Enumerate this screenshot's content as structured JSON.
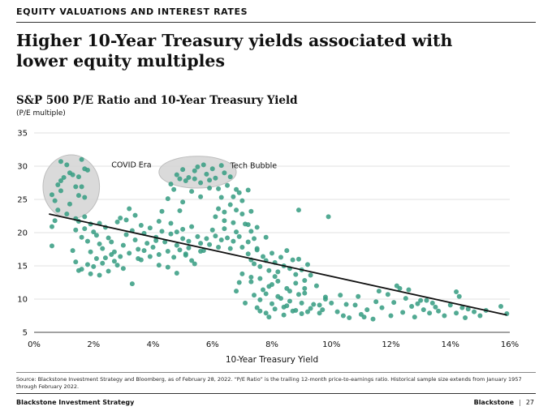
{
  "section_label": "EQUITY VALUATIONS AND INTEREST RATES",
  "headline": "Higher 10-Year Treasury yields associated with lower equity multiples",
  "chart_data": {
    "type": "scatter",
    "title": "S&P 500 P/E Ratio and 10-Year Treasury Yield",
    "ylabel": "(P/E multiple)",
    "xlabel": "10-Year Treasury Yield",
    "xlim": [
      0,
      16
    ],
    "ylim": [
      5,
      35
    ],
    "x_ticks": [
      0,
      2,
      4,
      6,
      8,
      10,
      12,
      14,
      16
    ],
    "x_tick_labels": [
      "0%",
      "2%",
      "4%",
      "6%",
      "8%",
      "10%",
      "12%",
      "14%",
      "16%"
    ],
    "y_ticks": [
      5,
      10,
      15,
      20,
      25,
      30,
      35
    ],
    "y_tick_labels": [
      "5",
      "10",
      "15",
      "20",
      "25",
      "30",
      "35"
    ],
    "grid": "horizontal",
    "colors": {
      "points": "#3a9e84",
      "trend": "#111111",
      "ellipse": "#d3d3d3"
    },
    "trendline": {
      "x": [
        0.5,
        15.9
      ],
      "y": [
        22.8,
        7.6
      ]
    },
    "annotations": [
      {
        "text": "COVID Era",
        "x": 2.6,
        "y": 29.2,
        "ellipse": {
          "cx": 1.25,
          "cy": 26.9,
          "rx": 0.95,
          "ry": 4.8
        }
      },
      {
        "text": "Tech Bubble",
        "x": 6.6,
        "y": 29.1,
        "ellipse": {
          "cx": 5.5,
          "cy": 29.1,
          "rx": 1.3,
          "ry": 2.4
        }
      }
    ],
    "points": [
      [
        0.6,
        25.7
      ],
      [
        0.7,
        24.8
      ],
      [
        0.8,
        27.2
      ],
      [
        0.9,
        30.7
      ],
      [
        1.0,
        28.3
      ],
      [
        1.1,
        30.2
      ],
      [
        0.9,
        26.3
      ],
      [
        1.3,
        28.7
      ],
      [
        1.4,
        26.9
      ],
      [
        1.5,
        25.6
      ],
      [
        1.6,
        31.0
      ],
      [
        1.7,
        29.6
      ],
      [
        1.6,
        26.9
      ],
      [
        1.2,
        29.0
      ],
      [
        1.5,
        28.4
      ],
      [
        0.8,
        23.4
      ],
      [
        1.7,
        25.3
      ],
      [
        1.4,
        22.1
      ],
      [
        0.7,
        21.8
      ],
      [
        0.6,
        20.9
      ],
      [
        1.2,
        24.3
      ],
      [
        1.8,
        29.4
      ],
      [
        0.9,
        27.8
      ],
      [
        1.1,
        22.8
      ],
      [
        0.6,
        18.0
      ],
      [
        1.3,
        17.3
      ],
      [
        1.4,
        15.6
      ],
      [
        1.5,
        14.3
      ],
      [
        4.5,
        25.1
      ],
      [
        4.6,
        27.3
      ],
      [
        4.8,
        28.7
      ],
      [
        4.9,
        28.1
      ],
      [
        5.0,
        29.5
      ],
      [
        5.2,
        28.3
      ],
      [
        5.4,
        29.3
      ],
      [
        5.5,
        29.9
      ],
      [
        5.6,
        27.5
      ],
      [
        5.7,
        30.2
      ],
      [
        5.8,
        28.8
      ],
      [
        5.9,
        27.9
      ],
      [
        6.0,
        29.6
      ],
      [
        6.1,
        28.2
      ],
      [
        6.3,
        30.1
      ],
      [
        6.4,
        29.0
      ],
      [
        6.5,
        27.1
      ],
      [
        5.3,
        26.2
      ],
      [
        5.1,
        27.8
      ],
      [
        4.7,
        26.5
      ],
      [
        5.9,
        26.7
      ],
      [
        6.6,
        28.4
      ],
      [
        6.2,
        26.6
      ],
      [
        5.4,
        28.1
      ],
      [
        6.8,
        26.5
      ],
      [
        6.9,
        26.0
      ],
      [
        7.2,
        26.4
      ],
      [
        7.3,
        23.2
      ],
      [
        6.4,
        23.1
      ],
      [
        6.7,
        25.4
      ],
      [
        7.0,
        24.8
      ],
      [
        6.3,
        25.3
      ],
      [
        5.0,
        24.6
      ],
      [
        5.6,
        25.4
      ],
      [
        6.6,
        24.2
      ],
      [
        4.9,
        23.3
      ],
      [
        1.4,
        20.4
      ],
      [
        1.5,
        21.7
      ],
      [
        1.6,
        19.3
      ],
      [
        1.7,
        20.6
      ],
      [
        1.8,
        18.7
      ],
      [
        1.9,
        21.3
      ],
      [
        2.0,
        20.1
      ],
      [
        2.1,
        19.6
      ],
      [
        2.2,
        18.3
      ],
      [
        2.3,
        17.6
      ],
      [
        2.4,
        20.8
      ],
      [
        2.5,
        19.2
      ],
      [
        2.6,
        18.6
      ],
      [
        2.7,
        17.1
      ],
      [
        2.8,
        21.6
      ],
      [
        2.9,
        16.4
      ],
      [
        3.0,
        18.1
      ],
      [
        3.1,
        19.7
      ],
      [
        3.2,
        16.9
      ],
      [
        3.3,
        20.3
      ],
      [
        3.4,
        18.9
      ],
      [
        3.5,
        17.5
      ],
      [
        3.6,
        21.1
      ],
      [
        3.7,
        19.9
      ],
      [
        3.8,
        18.4
      ],
      [
        3.9,
        20.7
      ],
      [
        4.0,
        17.8
      ],
      [
        4.1,
        19.3
      ],
      [
        4.2,
        16.7
      ],
      [
        4.3,
        20.2
      ],
      [
        4.4,
        18.6
      ],
      [
        4.5,
        17.2
      ],
      [
        4.6,
        19.8
      ],
      [
        4.7,
        16.3
      ],
      [
        4.8,
        18.1
      ],
      [
        4.9,
        17.4
      ],
      [
        5.0,
        19.1
      ],
      [
        5.1,
        16.6
      ],
      [
        5.2,
        18.7
      ],
      [
        5.3,
        15.8
      ],
      [
        1.6,
        14.5
      ],
      [
        1.8,
        15.2
      ],
      [
        1.9,
        13.8
      ],
      [
        2.0,
        14.9
      ],
      [
        2.1,
        16.1
      ],
      [
        2.2,
        13.6
      ],
      [
        2.3,
        15.4
      ],
      [
        2.5,
        14.2
      ],
      [
        2.6,
        16.7
      ],
      [
        2.8,
        15.1
      ],
      [
        3.0,
        14.6
      ],
      [
        3.3,
        12.3
      ],
      [
        3.6,
        15.9
      ],
      [
        3.9,
        16.4
      ],
      [
        4.2,
        15.1
      ],
      [
        4.5,
        14.8
      ],
      [
        4.8,
        13.9
      ],
      [
        5.1,
        16.8
      ],
      [
        5.4,
        15.3
      ],
      [
        5.6,
        17.2
      ],
      [
        3.1,
        21.9
      ],
      [
        2.2,
        21.4
      ],
      [
        1.7,
        22.4
      ],
      [
        2.9,
        22.2
      ],
      [
        3.4,
        22.6
      ],
      [
        4.2,
        21.7
      ],
      [
        4.6,
        21.4
      ],
      [
        5.0,
        20.5
      ],
      [
        5.3,
        20.9
      ],
      [
        4.3,
        23.2
      ],
      [
        3.2,
        23.6
      ],
      [
        1.9,
        17.1
      ],
      [
        2.4,
        16.2
      ],
      [
        2.7,
        15.7
      ],
      [
        3.5,
        16.1
      ],
      [
        4.1,
        18.8
      ],
      [
        3.7,
        17.3
      ],
      [
        4.8,
        20.1
      ],
      [
        5.2,
        17.7
      ],
      [
        5.5,
        19.4
      ],
      [
        5.6,
        18.4
      ],
      [
        5.7,
        17.3
      ],
      [
        5.8,
        19.1
      ],
      [
        5.9,
        18.2
      ],
      [
        6.0,
        20.4
      ],
      [
        6.1,
        19.5
      ],
      [
        6.2,
        17.8
      ],
      [
        6.3,
        18.9
      ],
      [
        6.4,
        20.6
      ],
      [
        6.5,
        19.2
      ],
      [
        6.6,
        17.6
      ],
      [
        6.7,
        18.7
      ],
      [
        6.8,
        20.1
      ],
      [
        6.9,
        19.4
      ],
      [
        7.0,
        17.8
      ],
      [
        7.1,
        21.3
      ],
      [
        7.2,
        18.6
      ],
      [
        7.3,
        20.2
      ],
      [
        7.4,
        19.1
      ],
      [
        7.5,
        17.4
      ],
      [
        6.1,
        22.4
      ],
      [
        6.4,
        21.8
      ],
      [
        6.7,
        21.5
      ],
      [
        7.0,
        22.8
      ],
      [
        7.2,
        21.2
      ],
      [
        6.8,
        23.4
      ],
      [
        7.5,
        20.8
      ],
      [
        7.8,
        19.3
      ],
      [
        6.2,
        23.6
      ],
      [
        7.3,
        15.9
      ],
      [
        7.2,
        16.8
      ],
      [
        7.4,
        15.3
      ],
      [
        7.5,
        17.6
      ],
      [
        7.6,
        14.9
      ],
      [
        7.7,
        16.4
      ],
      [
        7.8,
        15.8
      ],
      [
        7.9,
        14.3
      ],
      [
        8.0,
        16.9
      ],
      [
        8.1,
        15.5
      ],
      [
        8.2,
        14.1
      ],
      [
        8.3,
        16.3
      ],
      [
        8.4,
        15.0
      ],
      [
        8.5,
        17.3
      ],
      [
        8.6,
        14.6
      ],
      [
        8.7,
        15.9
      ],
      [
        8.8,
        13.7
      ],
      [
        8.9,
        16.0
      ],
      [
        9.0,
        14.4
      ],
      [
        9.1,
        12.8
      ],
      [
        9.2,
        15.2
      ],
      [
        7.0,
        13.8
      ],
      [
        7.3,
        12.6
      ],
      [
        7.6,
        13.1
      ],
      [
        7.9,
        11.9
      ],
      [
        8.2,
        12.7
      ],
      [
        8.5,
        11.6
      ],
      [
        8.8,
        12.4
      ],
      [
        9.1,
        10.9
      ],
      [
        9.3,
        13.6
      ],
      [
        9.5,
        12.0
      ],
      [
        7.4,
        10.6
      ],
      [
        7.6,
        9.9
      ],
      [
        7.8,
        10.8
      ],
      [
        8.0,
        9.3
      ],
      [
        8.2,
        10.4
      ],
      [
        8.4,
        8.8
      ],
      [
        8.6,
        9.7
      ],
      [
        8.8,
        8.3
      ],
      [
        9.0,
        9.4
      ],
      [
        9.2,
        8.1
      ],
      [
        7.5,
        8.7
      ],
      [
        7.8,
        7.9
      ],
      [
        8.1,
        8.5
      ],
      [
        8.4,
        7.6
      ],
      [
        8.7,
        8.2
      ],
      [
        9.0,
        7.8
      ],
      [
        9.3,
        8.6
      ],
      [
        9.6,
        7.9
      ],
      [
        7.7,
        11.4
      ],
      [
        8.3,
        10.1
      ],
      [
        8.9,
        10.7
      ],
      [
        9.4,
        9.2
      ],
      [
        9.7,
        8.4
      ],
      [
        8.6,
        11.2
      ],
      [
        7.6,
        8.2
      ],
      [
        6.8,
        11.2
      ],
      [
        7.1,
        9.4
      ],
      [
        7.9,
        7.3
      ],
      [
        8.5,
        9.0
      ],
      [
        9.1,
        11.6
      ],
      [
        6.9,
        12.5
      ],
      [
        8.0,
        12.2
      ],
      [
        9.8,
        10.3
      ],
      [
        8.1,
        13.4
      ],
      [
        7.3,
        13.3
      ],
      [
        9.8,
        10.0
      ],
      [
        10.0,
        9.4
      ],
      [
        10.2,
        8.1
      ],
      [
        10.4,
        7.5
      ],
      [
        10.6,
        7.2
      ],
      [
        10.8,
        9.1
      ],
      [
        11.0,
        7.7
      ],
      [
        11.2,
        8.4
      ],
      [
        11.4,
        7.0
      ],
      [
        11.5,
        9.6
      ],
      [
        11.7,
        8.7
      ],
      [
        11.9,
        10.7
      ],
      [
        12.1,
        9.5
      ],
      [
        12.3,
        11.6
      ],
      [
        12.5,
        10.1
      ],
      [
        12.7,
        8.9
      ],
      [
        12.9,
        9.3
      ],
      [
        13.1,
        8.4
      ],
      [
        13.3,
        7.9
      ],
      [
        13.5,
        8.8
      ],
      [
        12.0,
        7.5
      ],
      [
        12.4,
        8.0
      ],
      [
        12.8,
        7.3
      ],
      [
        13.2,
        9.8
      ],
      [
        13.6,
        8.2
      ],
      [
        13.8,
        7.5
      ],
      [
        14.0,
        9.1
      ],
      [
        14.2,
        7.9
      ],
      [
        14.4,
        8.7
      ],
      [
        14.5,
        7.2
      ],
      [
        14.6,
        8.5
      ],
      [
        14.8,
        8.1
      ],
      [
        15.0,
        7.5
      ],
      [
        15.2,
        8.3
      ],
      [
        15.7,
        8.9
      ],
      [
        15.9,
        7.8
      ],
      [
        14.2,
        11.1
      ],
      [
        13.0,
        9.8
      ],
      [
        11.6,
        11.2
      ],
      [
        12.6,
        11.4
      ],
      [
        10.5,
        9.2
      ],
      [
        10.9,
        10.4
      ],
      [
        12.2,
        12.0
      ],
      [
        11.1,
        7.3
      ],
      [
        10.3,
        10.6
      ],
      [
        13.4,
        9.4
      ],
      [
        14.3,
        10.4
      ],
      [
        9.9,
        22.4
      ],
      [
        8.9,
        23.4
      ],
      [
        9.6,
        9.1
      ]
    ]
  },
  "source_note": "Source: Blackstone Investment Strategy and Bloomberg, as of February 28, 2022. “P/E Ratio” is the trailing 12-month price-to-earnings ratio. Historical sample size extends from January 1957 through February 2022.",
  "footer": {
    "left": "Blackstone Investment Strategy",
    "brand": "Blackstone",
    "page": "27"
  }
}
